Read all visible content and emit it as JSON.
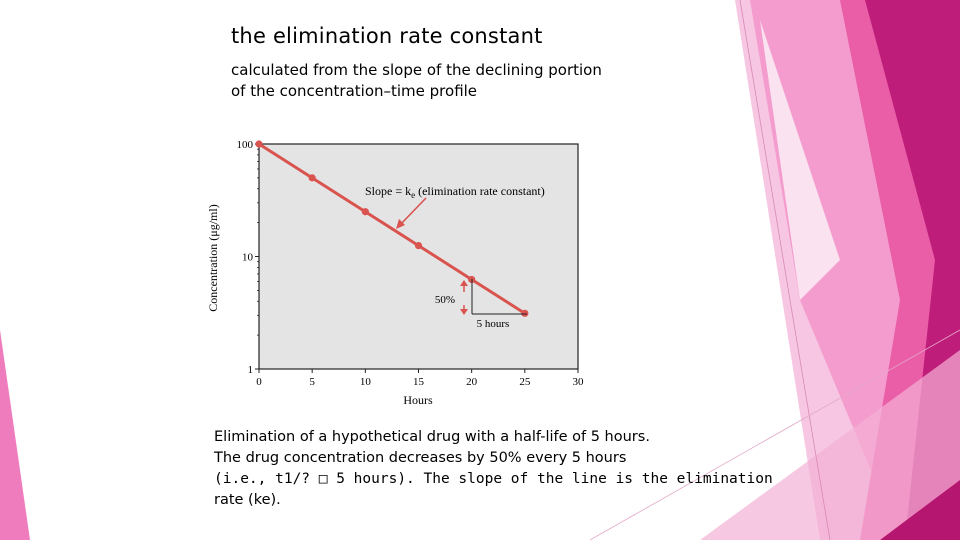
{
  "slide": {
    "title": "the elimination rate constant",
    "subtitle_lines": [
      "calculated from the slope of the declining portion",
      "of the concentration–time profile"
    ],
    "caption_lines": [
      "Elimination of a hypothetical drug with a half-life of 5 hours.",
      "The drug concentration decreases by 50% every 5 hours",
      "(i.e., t1/? □ 5 hours). The slope of the line is the elimination",
      "rate (ke)."
    ]
  },
  "colors": {
    "accent_pink": "#e84f9b",
    "accent_magenta": "#b5166f",
    "line_red": "#d9534f",
    "plot_bg": "#e4e4e4"
  },
  "chart_data": {
    "type": "line",
    "xlabel": "Hours",
    "ylabel": "Concentration (μg/ml)",
    "x_ticks": [
      "0",
      "5",
      "10",
      "15",
      "20",
      "25",
      "30"
    ],
    "y_ticks": [
      "1",
      "10",
      "100"
    ],
    "xlim": [
      0,
      30
    ],
    "ylim": [
      1,
      100
    ],
    "y_scale": "log",
    "series": [
      {
        "x": [
          0,
          5,
          10,
          15,
          20,
          25
        ],
        "y": [
          100,
          50,
          25,
          12.5,
          6.25,
          3.125
        ]
      }
    ],
    "annotations": {
      "slope_label": "Slope = k",
      "slope_subscript": "e",
      "slope_suffix": " (elimination rate constant)",
      "percent_label": "50%",
      "hours_label": "5 hours"
    },
    "grid": false
  }
}
